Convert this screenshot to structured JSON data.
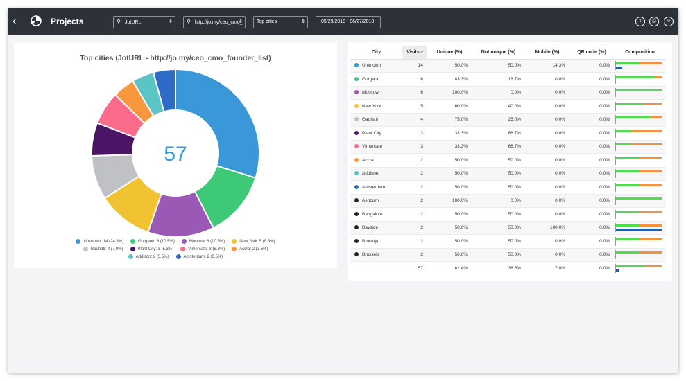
{
  "topbar": {
    "title": "Projects",
    "project_select": "JotURL",
    "url_select": "http://jo.my/ceo_cmo_",
    "report_select": "Top cities",
    "date_range": "05/29/2018 - 06/27/2018",
    "icons": [
      "upload-icon",
      "print-icon",
      "compare-icon"
    ]
  },
  "chart": {
    "title": "Top cities (JotURL - http://jo.my/ceo_cmo_founder_list)",
    "center_total": "57",
    "legend": [
      [
        "Unknown: 14 (24.6%)",
        "Gurgaon: 6 (10.5%)",
        "Moscow: 6 (10.5%)",
        "New York: 5 (8.8%)"
      ],
      [
        "Gauhati: 4 (7.0%)",
        "Plant City: 3 (5.3%)",
        "Vimercate: 3 (5.3%)",
        "Accra: 2 (3.5%)"
      ],
      [
        "Addison: 2 (3.5%)",
        "Amsterdam: 2 (3.5%)"
      ]
    ]
  },
  "chart_data": {
    "type": "pie",
    "categories": [
      "Unknown",
      "Gurgaon",
      "Moscow",
      "New York",
      "Gauhati",
      "Plant City",
      "Vimercate",
      "Accra",
      "Addison",
      "Amsterdam"
    ],
    "values": [
      14,
      6,
      6,
      5,
      4,
      3,
      3,
      2,
      2,
      2
    ],
    "colors": [
      "#3a98d8",
      "#3ec979",
      "#9b59b6",
      "#f1c232",
      "#bfc1c4",
      "#4b1465",
      "#fa6c8a",
      "#f7983e",
      "#5bc5c5",
      "#2e6bc6"
    ],
    "title": "Top cities (JotURL - http://jo.my/ceo_cmo_founder_list)",
    "legend_position": "bottom"
  },
  "table": {
    "headers": [
      "City",
      "Visits",
      "Unique (%)",
      "Not unique (%)",
      "Mobile (%)",
      "QR code (%)",
      "Composition"
    ],
    "sort_indicator": "▾",
    "rows": [
      {
        "city": "Unknown",
        "color": "#3a98d8",
        "visits": "14",
        "unique": "50.0%",
        "not_unique": "50.0%",
        "mobile": "14.3%",
        "qr": "0.0%",
        "u": 0.5,
        "m": 0.143
      },
      {
        "city": "Gurgaon",
        "color": "#3ec979",
        "visits": "6",
        "unique": "83.3%",
        "not_unique": "16.7%",
        "mobile": "0.0%",
        "qr": "0.0%",
        "u": 0.833,
        "m": 0
      },
      {
        "city": "Moscow",
        "color": "#9b59b6",
        "visits": "6",
        "unique": "100.0%",
        "not_unique": "0.0%",
        "mobile": "0.0%",
        "qr": "0.0%",
        "u": 1.0,
        "m": 0
      },
      {
        "city": "New York",
        "color": "#f1c232",
        "visits": "5",
        "unique": "60.0%",
        "not_unique": "40.0%",
        "mobile": "0.0%",
        "qr": "0.0%",
        "u": 0.6,
        "m": 0
      },
      {
        "city": "Gauhati",
        "color": "#bfc1c4",
        "visits": "4",
        "unique": "75.0%",
        "not_unique": "25.0%",
        "mobile": "0.0%",
        "qr": "0.0%",
        "u": 0.75,
        "m": 0
      },
      {
        "city": "Plant City",
        "color": "#4b1465",
        "visits": "3",
        "unique": "33.3%",
        "not_unique": "66.7%",
        "mobile": "0.0%",
        "qr": "0.0%",
        "u": 0.333,
        "m": 0
      },
      {
        "city": "Vimercate",
        "color": "#fa6c8a",
        "visits": "3",
        "unique": "33.3%",
        "not_unique": "66.7%",
        "mobile": "0.0%",
        "qr": "0.0%",
        "u": 0.333,
        "m": 0
      },
      {
        "city": "Accra",
        "color": "#f7983e",
        "visits": "2",
        "unique": "50.0%",
        "not_unique": "50.0%",
        "mobile": "0.0%",
        "qr": "0.0%",
        "u": 0.5,
        "m": 0
      },
      {
        "city": "Addison",
        "color": "#5bc5c5",
        "visits": "2",
        "unique": "50.0%",
        "not_unique": "50.0%",
        "mobile": "0.0%",
        "qr": "0.0%",
        "u": 0.5,
        "m": 0
      },
      {
        "city": "Amsterdam",
        "color": "#2e6bc6",
        "visits": "2",
        "unique": "50.0%",
        "not_unique": "50.0%",
        "mobile": "0.0%",
        "qr": "0.0%",
        "u": 0.5,
        "m": 0
      },
      {
        "city": "Ashburn",
        "color": "#222222",
        "visits": "2",
        "unique": "100.0%",
        "not_unique": "0.0%",
        "mobile": "0.0%",
        "qr": "0.0%",
        "u": 1.0,
        "m": 0
      },
      {
        "city": "Bangalore",
        "color": "#222222",
        "visits": "2",
        "unique": "50.0%",
        "not_unique": "50.0%",
        "mobile": "0.0%",
        "qr": "0.0%",
        "u": 0.5,
        "m": 0
      },
      {
        "city": "Bayside",
        "color": "#222222",
        "visits": "2",
        "unique": "50.0%",
        "not_unique": "50.0%",
        "mobile": "100.0%",
        "qr": "0.0%",
        "u": 0.5,
        "m": 1.0
      },
      {
        "city": "Brooklyn",
        "color": "#222222",
        "visits": "2",
        "unique": "50.0%",
        "not_unique": "50.0%",
        "mobile": "0.0%",
        "qr": "0.0%",
        "u": 0.5,
        "m": 0
      },
      {
        "city": "Brussels",
        "color": "#222222",
        "visits": "2",
        "unique": "50.0%",
        "not_unique": "50.0%",
        "mobile": "0.0%",
        "qr": "0.0%",
        "u": 0.5,
        "m": 0
      }
    ],
    "footer": {
      "visits": "57",
      "unique": "61.4%",
      "not_unique": "38.6%",
      "mobile": "7.0%",
      "qr": "0.0%",
      "u": 0.614,
      "m": 0.07
    }
  }
}
